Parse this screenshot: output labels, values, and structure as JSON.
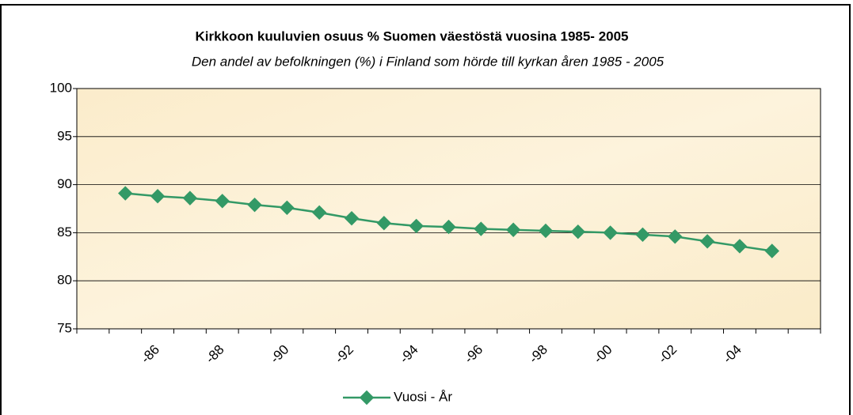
{
  "chart_data": {
    "type": "line",
    "title": "Kirkkoon kuuluvien osuus % Suomen väestöstä vuosina 1985- 2005",
    "subtitle": "Den andel av befolkningen (%) i Finland som hörde till kyrkan åren 1985 - 2005",
    "categories": [
      null,
      null,
      "-86",
      null,
      "-88",
      null,
      "-90",
      null,
      "-92",
      null,
      "-94",
      null,
      "-96",
      null,
      "-98",
      null,
      "-00",
      null,
      "-02",
      null,
      "-04",
      null,
      null
    ],
    "series": [
      {
        "name": "Vuosi - År",
        "color": "#339966",
        "values": [
          null,
          89.1,
          88.8,
          88.6,
          88.3,
          87.9,
          87.6,
          87.1,
          86.5,
          86.0,
          85.7,
          85.6,
          85.4,
          85.3,
          85.2,
          85.1,
          85.0,
          84.8,
          84.6,
          84.1,
          83.6,
          83.1,
          null
        ]
      }
    ],
    "ylim": [
      75,
      100
    ],
    "yticks": [
      75,
      80,
      85,
      90,
      95,
      100
    ],
    "grid": true
  }
}
